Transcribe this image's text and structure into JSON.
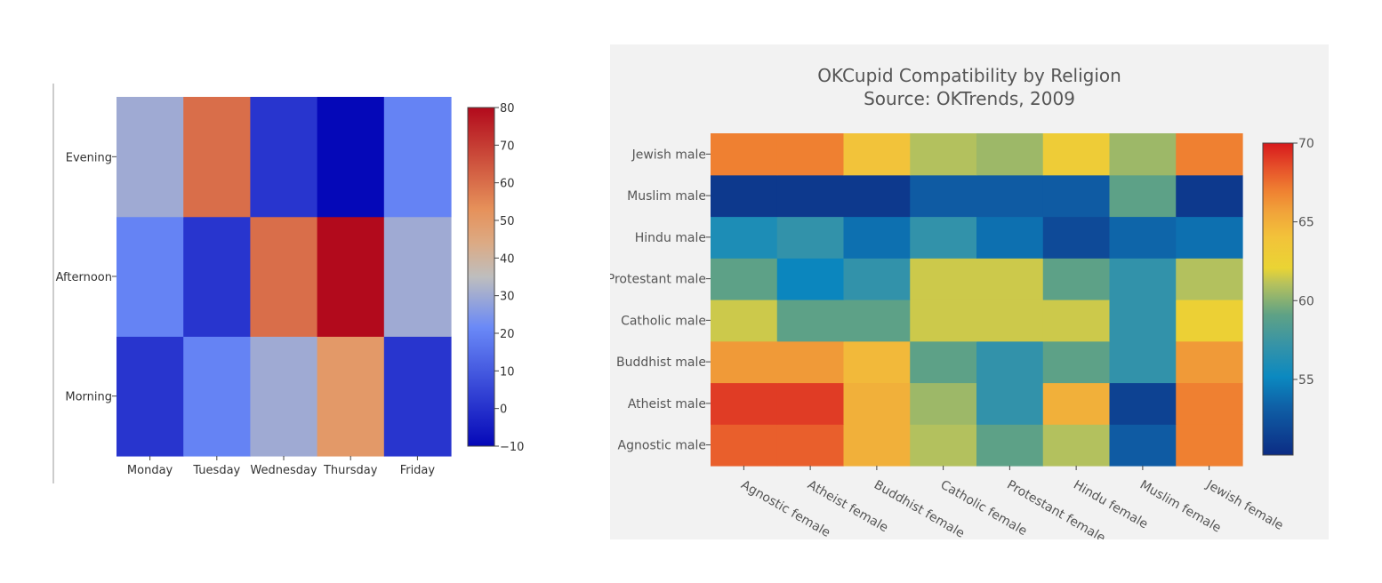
{
  "chart_data": [
    {
      "type": "heatmap",
      "title": "",
      "xlabel": "",
      "ylabel": "",
      "x": [
        "Monday",
        "Tuesday",
        "Wednesday",
        "Thursday",
        "Friday"
      ],
      "y": [
        "Morning",
        "Afternoon",
        "Evening"
      ],
      "z": [
        [
          1,
          20,
          30,
          50,
          1
        ],
        [
          20,
          1,
          60,
          80,
          30
        ],
        [
          30,
          60,
          1,
          -10,
          20
        ]
      ],
      "zlim": [
        -10,
        80
      ],
      "colorbar_ticks": [
        -10,
        0,
        10,
        20,
        30,
        40,
        50,
        60,
        70,
        80
      ],
      "colorscale": [
        [
          0.0,
          "#0508b8"
        ],
        [
          0.35,
          "#6a89f7"
        ],
        [
          0.5,
          "#bebebe"
        ],
        [
          0.6,
          "#dcaa84"
        ],
        [
          0.7,
          "#e6915a"
        ],
        [
          1.0,
          "#b20a1c"
        ]
      ],
      "background": "#ffffff",
      "legend": "none"
    },
    {
      "type": "heatmap",
      "title": "OKCupid Compatibility by Religion",
      "subtitle": "Source: OKTrends, 2009",
      "xlabel": "",
      "ylabel": "",
      "x": [
        "Agnostic female",
        "Atheist female",
        "Buddhist female",
        "Catholic female",
        "Protestant female",
        "Hindu female",
        "Muslim female",
        "Jewish female"
      ],
      "y": [
        "Agnostic male",
        "Atheist male",
        "Buddhist male",
        "Catholic male",
        "Protestant male",
        "Hindu male",
        "Muslim male",
        "Jewish male"
      ],
      "z": [
        [
          68,
          68,
          65,
          61,
          59,
          61,
          53,
          67
        ],
        [
          69,
          69,
          65,
          60.5,
          57,
          65,
          51.5,
          67
        ],
        [
          66,
          66,
          64.5,
          59,
          57,
          59,
          57,
          66
        ],
        [
          61.5,
          59,
          59,
          61.5,
          61.5,
          61.5,
          57,
          62.5
        ],
        [
          59,
          55,
          57,
          61.5,
          61.5,
          59,
          57,
          61
        ],
        [
          56,
          57,
          54,
          57,
          54,
          52,
          53.5,
          54
        ],
        [
          51,
          51,
          51,
          53,
          53,
          53,
          59,
          51
        ],
        [
          67,
          67,
          64,
          61,
          60.5,
          63,
          60.5,
          67
        ]
      ],
      "zlim": [
        50.2,
        70
      ],
      "colorbar_ticks": [
        55,
        60,
        65,
        70
      ],
      "colorscale": [
        [
          0.0,
          "#0c2c84"
        ],
        [
          0.15,
          "#0f5ea5"
        ],
        [
          0.25,
          "#0b89c0"
        ],
        [
          0.35,
          "#3593a8"
        ],
        [
          0.45,
          "#5fa285"
        ],
        [
          0.55,
          "#b7c25c"
        ],
        [
          0.6,
          "#ead434"
        ],
        [
          0.7,
          "#f2c23a"
        ],
        [
          0.78,
          "#f1a33a"
        ],
        [
          0.85,
          "#ef7f31"
        ],
        [
          0.92,
          "#e6512a"
        ],
        [
          1.0,
          "#d7191c"
        ]
      ],
      "background": "#f2f2f2",
      "legend": "none"
    }
  ]
}
